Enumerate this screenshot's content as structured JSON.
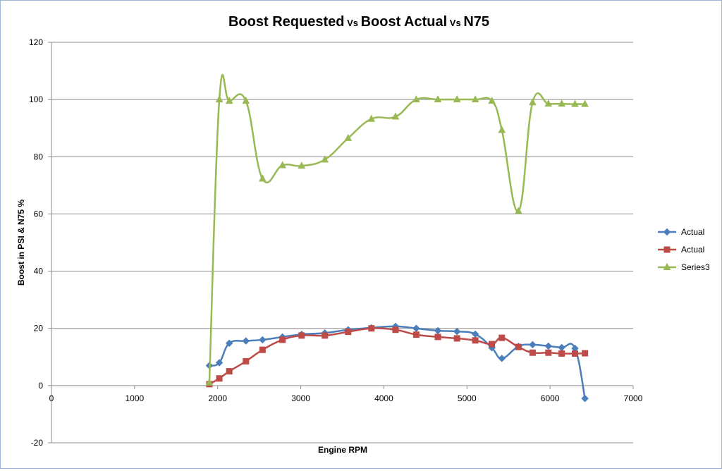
{
  "chart_data": {
    "type": "line",
    "title_parts": [
      {
        "text": "Boost Requested",
        "size": "large"
      },
      {
        "text": " Vs ",
        "size": "small"
      },
      {
        "text": "Boost Actual",
        "size": "large"
      },
      {
        "text": " Vs ",
        "size": "small"
      },
      {
        "text": "N75",
        "size": "large"
      }
    ],
    "xlabel": "Engine RPM",
    "ylabel": "Boost in PSI & N75 %",
    "xlim": [
      0,
      7000
    ],
    "ylim": [
      -20,
      120
    ],
    "x_ticks": [
      0,
      1000,
      2000,
      3000,
      4000,
      5000,
      6000,
      7000
    ],
    "y_ticks": [
      -20,
      0,
      20,
      40,
      60,
      80,
      100,
      120
    ],
    "grid": "horizontal",
    "legend_position": "right",
    "series": [
      {
        "name": "Actual",
        "color": "#4a7ebb",
        "marker": "diamond",
        "x": [
          1900,
          2020,
          2140,
          2340,
          2540,
          2780,
          3010,
          3290,
          3570,
          3850,
          4140,
          4390,
          4650,
          4880,
          5100,
          5300,
          5420,
          5620,
          5790,
          5980,
          6140,
          6300,
          6420
        ],
        "y": [
          7,
          8,
          14.8,
          15.6,
          16,
          17,
          17.9,
          18.4,
          19.5,
          20.2,
          20.7,
          20,
          19.2,
          18.9,
          18,
          13.2,
          9.5,
          13.7,
          14.3,
          13.8,
          13.3,
          13,
          -4.5
        ]
      },
      {
        "name": "Actual",
        "color": "#be4b48",
        "marker": "square",
        "x": [
          1900,
          2020,
          2140,
          2340,
          2540,
          2780,
          3010,
          3290,
          3570,
          3850,
          4140,
          4390,
          4650,
          4880,
          5100,
          5300,
          5420,
          5620,
          5790,
          5980,
          6140,
          6300,
          6420
        ],
        "y": [
          0.5,
          2.5,
          5,
          8.5,
          12.5,
          16,
          17.5,
          17.5,
          18.8,
          20,
          19.5,
          17.8,
          17,
          16.5,
          15.8,
          14.5,
          16.7,
          13.5,
          11.5,
          11.5,
          11.2,
          11.2,
          11.3
        ]
      },
      {
        "name": "Series3",
        "color": "#98b954",
        "marker": "triangle",
        "x": [
          1900,
          2020,
          2140,
          2340,
          2540,
          2780,
          3010,
          3290,
          3570,
          3850,
          4140,
          4390,
          4650,
          4880,
          5100,
          5300,
          5420,
          5620,
          5790,
          5980,
          6140,
          6300,
          6420
        ],
        "y": [
          1,
          100,
          99.5,
          99.5,
          72.3,
          77,
          76.8,
          79,
          86.5,
          93.2,
          94,
          100,
          100,
          100,
          100,
          99.5,
          89.3,
          61,
          99,
          98.5,
          98.5,
          98.4,
          98.4
        ]
      }
    ]
  }
}
